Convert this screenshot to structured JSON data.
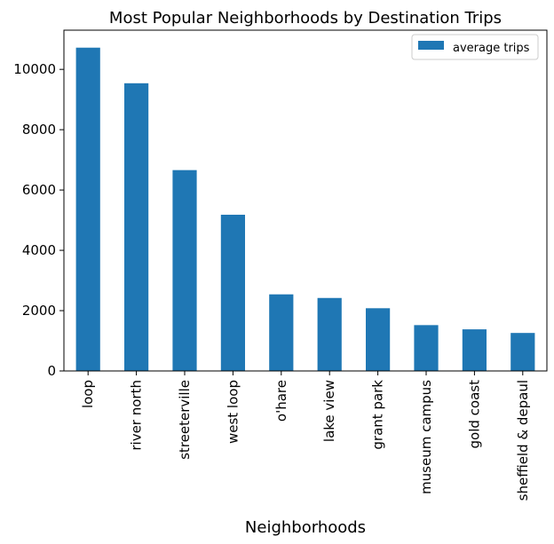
{
  "chart_data": {
    "type": "bar",
    "title": "Most Popular Neighborhoods by Destination Trips",
    "xlabel": "Neighborhoods",
    "ylabel": "",
    "categories": [
      "loop",
      "river north",
      "streeterville",
      "west loop",
      "o'hare",
      "lake view",
      "grant park",
      "museum campus",
      "gold coast",
      "sheffield & depaul"
    ],
    "series": [
      {
        "name": "average trips",
        "color": "#1f77b4",
        "values": [
          10720,
          9540,
          6660,
          5180,
          2540,
          2420,
          2080,
          1520,
          1380,
          1260
        ]
      }
    ],
    "ylim": [
      0,
      11300
    ],
    "yticks": [
      0,
      2000,
      4000,
      6000,
      8000,
      10000
    ],
    "grid": false,
    "legend_position": "top-right"
  }
}
